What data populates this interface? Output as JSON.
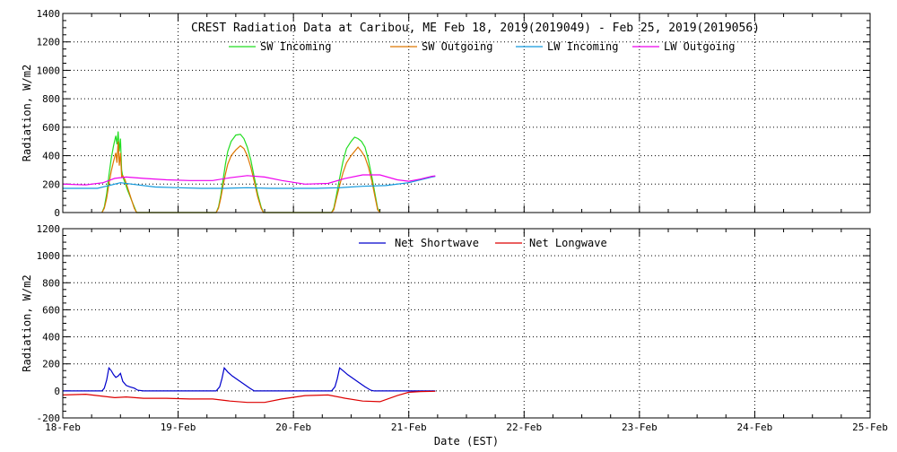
{
  "figure": {
    "title": "CREST Radiation Data at Caribou, ME   Feb 18, 2019(2019049) - Feb 25, 2019(2019056)",
    "xlabel": "Date (EST)"
  },
  "colors": {
    "sw_in": "#22dd22",
    "sw_out": "#dd7700",
    "lw_in": "#1199dd",
    "lw_out": "#ee00ee",
    "net_sw": "#0000cc",
    "net_lw": "#dd0000",
    "grid": "#000000"
  },
  "chart_data": [
    {
      "type": "line",
      "ylabel": "Radiation, W/m2",
      "ylim": [
        0,
        1400
      ],
      "yticks": [
        0,
        200,
        400,
        600,
        800,
        1000,
        1200,
        1400
      ],
      "xlim": [
        "18-Feb",
        "25-Feb"
      ],
      "xtick_labels": [
        "18-Feb",
        "19-Feb",
        "20-Feb",
        "21-Feb",
        "22-Feb",
        "23-Feb",
        "24-Feb",
        "25-Feb"
      ],
      "grid": true,
      "legend": "top-center",
      "series": [
        {
          "name": "SW Incoming",
          "color_key": "sw_in",
          "points": [
            [
              0.34,
              0
            ],
            [
              0.36,
              40
            ],
            [
              0.38,
              130
            ],
            [
              0.4,
              260
            ],
            [
              0.42,
              380
            ],
            [
              0.44,
              470
            ],
            [
              0.46,
              540
            ],
            [
              0.47,
              480
            ],
            [
              0.48,
              570
            ],
            [
              0.49,
              430
            ],
            [
              0.5,
              520
            ],
            [
              0.51,
              300
            ],
            [
              0.52,
              250
            ],
            [
              0.54,
              210
            ],
            [
              0.56,
              160
            ],
            [
              0.58,
              120
            ],
            [
              0.6,
              80
            ],
            [
              0.62,
              40
            ],
            [
              0.64,
              0
            ],
            [
              1.33,
              0
            ],
            [
              1.35,
              40
            ],
            [
              1.37,
              120
            ],
            [
              1.39,
              230
            ],
            [
              1.41,
              340
            ],
            [
              1.43,
              430
            ],
            [
              1.46,
              500
            ],
            [
              1.5,
              545
            ],
            [
              1.54,
              550
            ],
            [
              1.57,
              520
            ],
            [
              1.6,
              460
            ],
            [
              1.63,
              370
            ],
            [
              1.66,
              250
            ],
            [
              1.69,
              130
            ],
            [
              1.72,
              40
            ],
            [
              1.74,
              0
            ],
            [
              2.33,
              0
            ],
            [
              2.35,
              30
            ],
            [
              2.37,
              110
            ],
            [
              2.4,
              240
            ],
            [
              2.43,
              360
            ],
            [
              2.46,
              450
            ],
            [
              2.5,
              500
            ],
            [
              2.53,
              530
            ],
            [
              2.56,
              520
            ],
            [
              2.59,
              500
            ],
            [
              2.62,
              460
            ],
            [
              2.65,
              370
            ],
            [
              2.68,
              250
            ],
            [
              2.71,
              120
            ],
            [
              2.73,
              30
            ],
            [
              2.75,
              0
            ]
          ]
        },
        {
          "name": "SW Outgoing",
          "color_key": "sw_out",
          "points": [
            [
              0.34,
              0
            ],
            [
              0.36,
              30
            ],
            [
              0.38,
              100
            ],
            [
              0.4,
              200
            ],
            [
              0.42,
              290
            ],
            [
              0.44,
              360
            ],
            [
              0.46,
              420
            ],
            [
              0.47,
              350
            ],
            [
              0.48,
              500
            ],
            [
              0.49,
              330
            ],
            [
              0.5,
              420
            ],
            [
              0.51,
              250
            ],
            [
              0.52,
              260
            ],
            [
              0.54,
              230
            ],
            [
              0.56,
              180
            ],
            [
              0.58,
              130
            ],
            [
              0.6,
              80
            ],
            [
              0.62,
              30
            ],
            [
              0.64,
              0
            ],
            [
              1.33,
              0
            ],
            [
              1.35,
              30
            ],
            [
              1.37,
              100
            ],
            [
              1.39,
              190
            ],
            [
              1.41,
              270
            ],
            [
              1.43,
              340
            ],
            [
              1.46,
              400
            ],
            [
              1.5,
              440
            ],
            [
              1.54,
              470
            ],
            [
              1.57,
              450
            ],
            [
              1.6,
              400
            ],
            [
              1.63,
              320
            ],
            [
              1.66,
              220
            ],
            [
              1.69,
              110
            ],
            [
              1.72,
              30
            ],
            [
              1.74,
              0
            ],
            [
              2.33,
              0
            ],
            [
              2.35,
              20
            ],
            [
              2.37,
              90
            ],
            [
              2.4,
              190
            ],
            [
              2.43,
              280
            ],
            [
              2.46,
              350
            ],
            [
              2.5,
              400
            ],
            [
              2.53,
              430
            ],
            [
              2.56,
              460
            ],
            [
              2.59,
              430
            ],
            [
              2.62,
              390
            ],
            [
              2.65,
              320
            ],
            [
              2.68,
              220
            ],
            [
              2.71,
              100
            ],
            [
              2.73,
              20
            ],
            [
              2.75,
              0
            ]
          ]
        },
        {
          "name": "LW Incoming",
          "color_key": "lw_in",
          "points": [
            [
              0.0,
              170
            ],
            [
              0.3,
              170
            ],
            [
              0.4,
              190
            ],
            [
              0.5,
              210
            ],
            [
              0.6,
              200
            ],
            [
              0.8,
              180
            ],
            [
              1.0,
              175
            ],
            [
              1.2,
              170
            ],
            [
              1.4,
              170
            ],
            [
              1.6,
              175
            ],
            [
              1.8,
              170
            ],
            [
              2.0,
              170
            ],
            [
              2.2,
              170
            ],
            [
              2.4,
              175
            ],
            [
              2.6,
              185
            ],
            [
              2.8,
              190
            ],
            [
              3.0,
              210
            ],
            [
              3.1,
              230
            ],
            [
              3.2,
              250
            ],
            [
              3.23,
              255
            ]
          ]
        },
        {
          "name": "LW Outgoing",
          "color_key": "lw_out",
          "points": [
            [
              0.0,
              200
            ],
            [
              0.2,
              195
            ],
            [
              0.35,
              210
            ],
            [
              0.45,
              240
            ],
            [
              0.55,
              250
            ],
            [
              0.7,
              240
            ],
            [
              0.9,
              230
            ],
            [
              1.1,
              225
            ],
            [
              1.3,
              225
            ],
            [
              1.45,
              245
            ],
            [
              1.6,
              260
            ],
            [
              1.75,
              250
            ],
            [
              1.9,
              225
            ],
            [
              2.1,
              200
            ],
            [
              2.3,
              205
            ],
            [
              2.45,
              240
            ],
            [
              2.6,
              265
            ],
            [
              2.75,
              265
            ],
            [
              2.9,
              230
            ],
            [
              3.0,
              220
            ],
            [
              3.1,
              235
            ],
            [
              3.2,
              255
            ],
            [
              3.23,
              258
            ]
          ]
        }
      ]
    },
    {
      "type": "line",
      "ylabel": "Radiation, W/m2",
      "ylim": [
        -200,
        1200
      ],
      "yticks": [
        -200,
        0,
        200,
        400,
        600,
        800,
        1000,
        1200
      ],
      "xlim": [
        "18-Feb",
        "25-Feb"
      ],
      "xtick_labels": [
        "18-Feb",
        "19-Feb",
        "20-Feb",
        "21-Feb",
        "22-Feb",
        "23-Feb",
        "24-Feb",
        "25-Feb"
      ],
      "grid": true,
      "legend": "top-center",
      "series": [
        {
          "name": "Net Shortwave",
          "color_key": "net_sw",
          "points": [
            [
              0.0,
              0
            ],
            [
              0.34,
              0
            ],
            [
              0.36,
              20
            ],
            [
              0.38,
              80
            ],
            [
              0.4,
              170
            ],
            [
              0.42,
              150
            ],
            [
              0.44,
              120
            ],
            [
              0.46,
              100
            ],
            [
              0.48,
              110
            ],
            [
              0.5,
              130
            ],
            [
              0.52,
              70
            ],
            [
              0.55,
              40
            ],
            [
              0.58,
              30
            ],
            [
              0.62,
              20
            ],
            [
              0.65,
              5
            ],
            [
              0.7,
              0
            ],
            [
              1.33,
              0
            ],
            [
              1.36,
              30
            ],
            [
              1.38,
              90
            ],
            [
              1.4,
              170
            ],
            [
              1.43,
              140
            ],
            [
              1.47,
              110
            ],
            [
              1.52,
              80
            ],
            [
              1.57,
              50
            ],
            [
              1.62,
              20
            ],
            [
              1.66,
              0
            ],
            [
              2.33,
              0
            ],
            [
              2.36,
              30
            ],
            [
              2.38,
              90
            ],
            [
              2.4,
              170
            ],
            [
              2.43,
              150
            ],
            [
              2.47,
              120
            ],
            [
              2.52,
              90
            ],
            [
              2.57,
              60
            ],
            [
              2.62,
              30
            ],
            [
              2.67,
              5
            ],
            [
              2.7,
              0
            ],
            [
              3.23,
              0
            ]
          ]
        },
        {
          "name": "Net Longwave",
          "color_key": "net_lw",
          "points": [
            [
              0.0,
              -30
            ],
            [
              0.2,
              -25
            ],
            [
              0.35,
              -40
            ],
            [
              0.45,
              -50
            ],
            [
              0.55,
              -45
            ],
            [
              0.7,
              -55
            ],
            [
              0.9,
              -55
            ],
            [
              1.1,
              -60
            ],
            [
              1.3,
              -60
            ],
            [
              1.45,
              -75
            ],
            [
              1.6,
              -85
            ],
            [
              1.75,
              -85
            ],
            [
              1.9,
              -60
            ],
            [
              2.1,
              -35
            ],
            [
              2.3,
              -30
            ],
            [
              2.45,
              -55
            ],
            [
              2.6,
              -75
            ],
            [
              2.75,
              -80
            ],
            [
              2.9,
              -35
            ],
            [
              3.0,
              -10
            ],
            [
              3.1,
              -5
            ],
            [
              3.23,
              -3
            ]
          ]
        }
      ]
    }
  ]
}
